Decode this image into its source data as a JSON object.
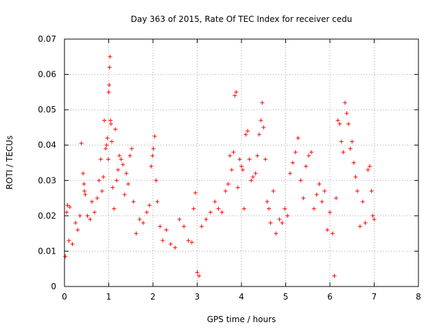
{
  "chart_data": {
    "type": "scatter",
    "title": "Day 363 of 2015, Rate Of TEC Index for receiver cedu",
    "xlabel": "GPS time / hours",
    "ylabel": "ROTI / TECUs",
    "xlim": [
      0,
      8
    ],
    "ylim": [
      0,
      0.07
    ],
    "xticks": [
      "0",
      "1",
      "2",
      "3",
      "4",
      "5",
      "6",
      "7",
      "8"
    ],
    "yticks": [
      "0",
      "0.01",
      "0.02",
      "0.03",
      "0.04",
      "0.05",
      "0.06",
      "0.07"
    ],
    "grid": true,
    "marker": "+",
    "color": "#ff0000",
    "series": [
      {
        "name": "ROTI",
        "points": [
          [
            0.02,
            0.0085
          ],
          [
            0.05,
            0.021
          ],
          [
            0.07,
            0.023
          ],
          [
            0.1,
            0.013
          ],
          [
            0.12,
            0.0225
          ],
          [
            0.18,
            0.012
          ],
          [
            0.25,
            0.018
          ],
          [
            0.3,
            0.016
          ],
          [
            0.35,
            0.02
          ],
          [
            0.38,
            0.0405
          ],
          [
            0.42,
            0.032
          ],
          [
            0.44,
            0.029
          ],
          [
            0.45,
            0.027
          ],
          [
            0.47,
            0.026
          ],
          [
            0.52,
            0.02
          ],
          [
            0.58,
            0.019
          ],
          [
            0.62,
            0.024
          ],
          [
            0.68,
            0.021
          ],
          [
            0.74,
            0.025
          ],
          [
            0.78,
            0.03
          ],
          [
            0.82,
            0.036
          ],
          [
            0.85,
            0.027
          ],
          [
            0.88,
            0.031
          ],
          [
            0.9,
            0.047
          ],
          [
            0.93,
            0.039
          ],
          [
            0.95,
            0.04
          ],
          [
            0.97,
            0.042
          ],
          [
            0.99,
            0.036
          ],
          [
            1.0,
            0.055
          ],
          [
            1.01,
            0.057
          ],
          [
            1.02,
            0.062
          ],
          [
            1.03,
            0.065
          ],
          [
            1.04,
            0.047
          ],
          [
            1.05,
            0.046
          ],
          [
            1.07,
            0.041
          ],
          [
            1.09,
            0.028
          ],
          [
            1.12,
            0.022
          ],
          [
            1.15,
            0.0445
          ],
          [
            1.18,
            0.03
          ],
          [
            1.21,
            0.033
          ],
          [
            1.24,
            0.037
          ],
          [
            1.28,
            0.036
          ],
          [
            1.32,
            0.0345
          ],
          [
            1.36,
            0.026
          ],
          [
            1.4,
            0.032
          ],
          [
            1.44,
            0.029
          ],
          [
            1.48,
            0.037
          ],
          [
            1.52,
            0.039
          ],
          [
            1.56,
            0.024
          ],
          [
            1.62,
            0.015
          ],
          [
            1.7,
            0.019
          ],
          [
            1.78,
            0.018
          ],
          [
            1.86,
            0.021
          ],
          [
            1.92,
            0.023
          ],
          [
            1.96,
            0.034
          ],
          [
            1.99,
            0.037
          ],
          [
            2.01,
            0.039
          ],
          [
            2.04,
            0.0425
          ],
          [
            2.07,
            0.03
          ],
          [
            2.1,
            0.024
          ],
          [
            2.16,
            0.017
          ],
          [
            2.22,
            0.013
          ],
          [
            2.3,
            0.016
          ],
          [
            2.4,
            0.012
          ],
          [
            2.5,
            0.011
          ],
          [
            2.6,
            0.019
          ],
          [
            2.7,
            0.017
          ],
          [
            2.8,
            0.013
          ],
          [
            2.88,
            0.0125
          ],
          [
            2.92,
            0.022
          ],
          [
            2.96,
            0.0265
          ],
          [
            3.0,
            0.004
          ],
          [
            3.04,
            0.003
          ],
          [
            3.1,
            0.017
          ],
          [
            3.2,
            0.019
          ],
          [
            3.3,
            0.021
          ],
          [
            3.4,
            0.024
          ],
          [
            3.48,
            0.022
          ],
          [
            3.56,
            0.021
          ],
          [
            3.64,
            0.027
          ],
          [
            3.7,
            0.029
          ],
          [
            3.74,
            0.037
          ],
          [
            3.78,
            0.033
          ],
          [
            3.82,
            0.038
          ],
          [
            3.85,
            0.054
          ],
          [
            3.88,
            0.055
          ],
          [
            3.92,
            0.028
          ],
          [
            3.96,
            0.036
          ],
          [
            4.0,
            0.034
          ],
          [
            4.03,
            0.033
          ],
          [
            4.06,
            0.022
          ],
          [
            4.1,
            0.043
          ],
          [
            4.14,
            0.044
          ],
          [
            4.18,
            0.036
          ],
          [
            4.22,
            0.03
          ],
          [
            4.26,
            0.031
          ],
          [
            4.32,
            0.032
          ],
          [
            4.36,
            0.037
          ],
          [
            4.4,
            0.043
          ],
          [
            4.44,
            0.047
          ],
          [
            4.47,
            0.052
          ],
          [
            4.5,
            0.045
          ],
          [
            4.54,
            0.036
          ],
          [
            4.58,
            0.024
          ],
          [
            4.62,
            0.022
          ],
          [
            4.66,
            0.018
          ],
          [
            4.72,
            0.027
          ],
          [
            4.78,
            0.015
          ],
          [
            4.86,
            0.019
          ],
          [
            4.92,
            0.018
          ],
          [
            4.98,
            0.022
          ],
          [
            5.04,
            0.02
          ],
          [
            5.1,
            0.032
          ],
          [
            5.16,
            0.035
          ],
          [
            5.22,
            0.038
          ],
          [
            5.28,
            0.042
          ],
          [
            5.34,
            0.03
          ],
          [
            5.4,
            0.025
          ],
          [
            5.46,
            0.034
          ],
          [
            5.52,
            0.037
          ],
          [
            5.58,
            0.038
          ],
          [
            5.64,
            0.022
          ],
          [
            5.7,
            0.026
          ],
          [
            5.76,
            0.029
          ],
          [
            5.82,
            0.024
          ],
          [
            5.88,
            0.027
          ],
          [
            5.94,
            0.016
          ],
          [
            6.0,
            0.021
          ],
          [
            6.06,
            0.015
          ],
          [
            6.1,
            0.003
          ],
          [
            6.14,
            0.025
          ],
          [
            6.18,
            0.047
          ],
          [
            6.22,
            0.046
          ],
          [
            6.26,
            0.041
          ],
          [
            6.3,
            0.038
          ],
          [
            6.34,
            0.052
          ],
          [
            6.38,
            0.049
          ],
          [
            6.42,
            0.046
          ],
          [
            6.46,
            0.039
          ],
          [
            6.5,
            0.041
          ],
          [
            6.54,
            0.035
          ],
          [
            6.58,
            0.031
          ],
          [
            6.62,
            0.027
          ],
          [
            6.68,
            0.017
          ],
          [
            6.74,
            0.024
          ],
          [
            6.8,
            0.018
          ],
          [
            6.86,
            0.033
          ],
          [
            6.9,
            0.034
          ],
          [
            6.94,
            0.027
          ],
          [
            6.97,
            0.02
          ],
          [
            7.0,
            0.019
          ]
        ]
      }
    ]
  }
}
